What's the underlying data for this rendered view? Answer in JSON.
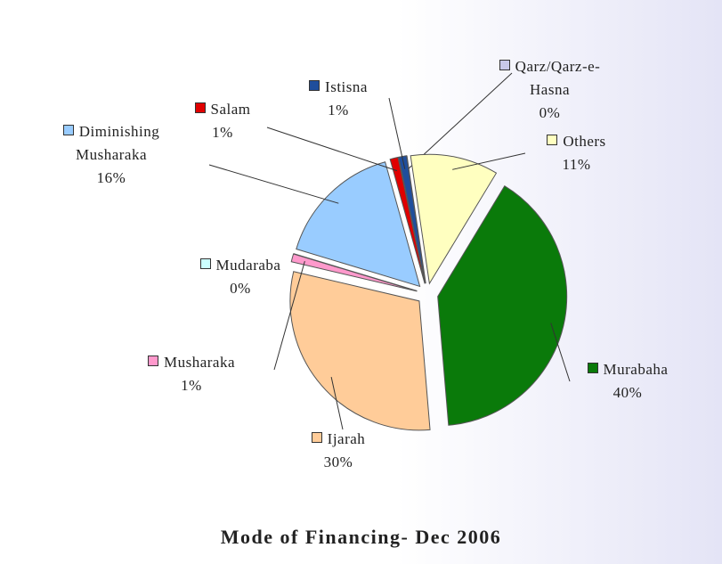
{
  "chart_data": {
    "type": "pie",
    "title": "Mode of Financing- Dec 2006",
    "categories": [
      "Istisna",
      "Qarz/Qarz-e-Hasna",
      "Others",
      "Murabaha",
      "Ijarah",
      "Musharaka",
      "Mudaraba",
      "Diminishing Musharaka",
      "Salam"
    ],
    "values": [
      1,
      0,
      11,
      40,
      30,
      1,
      0,
      16,
      1
    ],
    "value_labels": [
      "1%",
      "0%",
      "11%",
      "40%",
      "30%",
      "1%",
      "0%",
      "16%",
      "1%"
    ],
    "colors": [
      "#1f4e9c",
      "#c8c8ea",
      "#ffffc0",
      "#0a7a0a",
      "#ffcc99",
      "#ff99cc",
      "#ccffff",
      "#99ccff",
      "#e00000"
    ]
  }
}
